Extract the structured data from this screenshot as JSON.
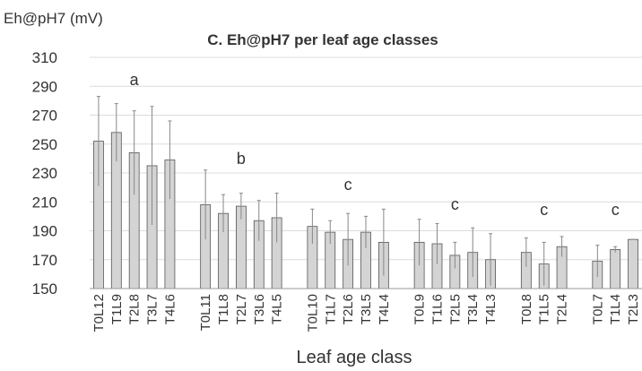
{
  "chart_data": {
    "type": "bar",
    "title": "C. Eh@pH7 per leaf age classes",
    "y_label": "Eh@pH7 (mV)",
    "x_label": "Leaf age class",
    "categories": [
      "T0L12",
      "T1L9",
      "T2L8",
      "T3L7",
      "T4L6",
      null,
      "T0L11",
      "T1L8",
      "T2L7",
      "T3L6",
      "T4L5",
      null,
      "T0L10",
      "T1L7",
      "T2L6",
      "T3L5",
      "T4L4",
      null,
      "T0L9",
      "T1L6",
      "T2L5",
      "T3L4",
      "T4L3",
      null,
      "T0L8",
      "T1L5",
      "T2L4",
      null,
      "T0L7",
      "T1L4",
      "T2L3"
    ],
    "values": [
      252,
      258,
      244,
      235,
      239,
      null,
      208,
      202,
      207,
      197,
      199,
      null,
      193,
      189,
      184,
      189,
      182,
      null,
      182,
      181,
      173,
      175,
      170,
      null,
      175,
      167,
      179,
      null,
      169,
      177,
      184
    ],
    "errors": [
      31,
      20,
      29,
      41,
      27,
      null,
      24,
      13,
      9,
      14,
      17,
      null,
      12,
      8,
      18,
      11,
      23,
      null,
      16,
      14,
      9,
      17,
      18,
      null,
      10,
      15,
      7,
      null,
      11,
      2,
      0
    ],
    "group_letters": [
      "a",
      "b",
      "c",
      "c",
      "c",
      "c"
    ],
    "color": "#d4d4d4",
    "ylim": [
      150,
      310
    ],
    "yticks": [
      150,
      170,
      190,
      210,
      230,
      250,
      270,
      290,
      310
    ],
    "grid": true
  }
}
